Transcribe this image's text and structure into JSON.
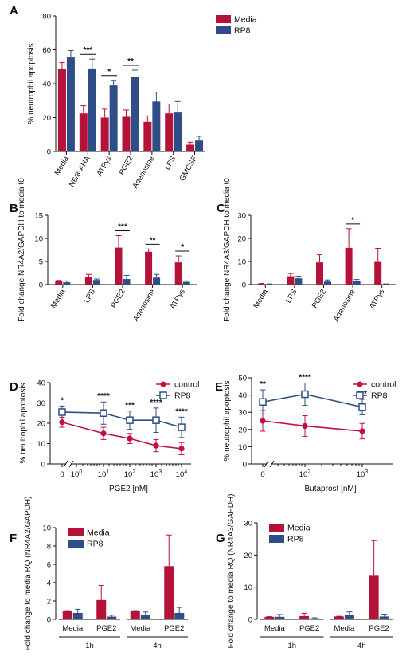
{
  "colors": {
    "media": "#b5123a",
    "rp8": "#2f4d86",
    "control": "#c40f3d"
  },
  "chart_data": [
    {
      "id": "A",
      "label": "A",
      "type": "bar",
      "ylabel": "% neutrophil apoptosis",
      "ylim": [
        0,
        80
      ],
      "yticks": [
        "0",
        "20",
        "40",
        "60",
        "80"
      ],
      "categories": [
        "Media",
        "N6/8-AHA",
        "ATPγs",
        "PGE2",
        "Adenosine",
        "LPS",
        "GMCSF"
      ],
      "series": [
        {
          "name": "Media",
          "values": [
            48.5,
            22.5,
            20,
            20.5,
            17.5,
            22.5,
            4
          ],
          "errors": [
            4,
            4.5,
            5,
            4,
            3.5,
            5.5,
            1.5
          ]
        },
        {
          "name": "RP8",
          "values": [
            55.5,
            49,
            39,
            44,
            29.5,
            23,
            6.5
          ],
          "errors": [
            4,
            5.5,
            3,
            4,
            5.5,
            6.5,
            2.5
          ]
        }
      ],
      "legend": "top-right",
      "sig": [
        {
          "cat": 1,
          "text": "***"
        },
        {
          "cat": 2,
          "text": "*"
        },
        {
          "cat": 3,
          "text": "**"
        }
      ]
    },
    {
      "id": "B",
      "label": "B",
      "type": "bar",
      "ylabel": "Fold change NR4A2/GAPDH to media t0",
      "ylim": [
        0,
        15
      ],
      "yticks": [
        "0",
        "5",
        "10",
        "15"
      ],
      "categories": [
        "Media",
        "LPS",
        "PGE2",
        "Adenosine",
        "ATPγs"
      ],
      "series": [
        {
          "name": "Media",
          "values": [
            0.8,
            1.6,
            8,
            7.1,
            4.8
          ],
          "errors": [
            0.1,
            0.6,
            2.6,
            0.6,
            1.4
          ]
        },
        {
          "name": "RP8",
          "values": [
            0.5,
            1,
            1.2,
            1.5,
            0.6
          ],
          "errors": [
            0.3,
            0.2,
            0.8,
            0.7,
            0.2
          ]
        }
      ],
      "sig": [
        {
          "cat": 2,
          "text": "***"
        },
        {
          "cat": 3,
          "text": "**"
        },
        {
          "cat": 4,
          "text": "*"
        }
      ]
    },
    {
      "id": "C",
      "label": "C",
      "type": "bar",
      "ylabel": "Fold change NR4A3/GAPDH to media t0",
      "ylim": [
        0,
        30
      ],
      "yticks": [
        "0",
        "10",
        "20",
        "30"
      ],
      "categories": [
        "Media",
        "LPS",
        "PGE2",
        "Adenosine",
        "ATPγs"
      ],
      "series": [
        {
          "name": "Media",
          "values": [
            0.4,
            3.6,
            9.6,
            15.9,
            9.8
          ],
          "errors": [
            0.1,
            1.2,
            3.3,
            8.3,
            5.9
          ]
        },
        {
          "name": "RP8",
          "values": [
            0.2,
            2.7,
            1.3,
            1.4,
            0.2
          ],
          "errors": [
            0.1,
            0.9,
            0.7,
            0.8,
            0.1
          ]
        }
      ],
      "sig": [
        {
          "cat": 3,
          "text": "*"
        }
      ]
    },
    {
      "id": "D",
      "label": "D",
      "type": "line",
      "ylabel": "% neutrophil apoptosis",
      "xlabel": "PGE2 [nM]",
      "ylim": [
        0,
        40
      ],
      "yticks": [
        "0",
        "10",
        "20",
        "30",
        "40"
      ],
      "xticks": [
        {
          "t": "0",
          "p": 0
        },
        {
          "t": "10",
          "sup": "0",
          "p": 1
        },
        {
          "t": "10",
          "sup": "1",
          "p": 2
        },
        {
          "t": "10",
          "sup": "2",
          "p": 3
        },
        {
          "t": "10",
          "sup": "3",
          "p": 4
        },
        {
          "t": "10",
          "sup": "4",
          "p": 5
        }
      ],
      "x": [
        0,
        1,
        2,
        3,
        4
      ],
      "points_at": [
        0,
        2,
        3,
        4,
        5
      ],
      "series": [
        {
          "name": "control",
          "values": [
            20.5,
            15,
            12.5,
            9,
            7.5
          ],
          "errors": [
            2.5,
            3,
            2.5,
            3,
            3
          ]
        },
        {
          "name": "RP8",
          "values": [
            25.5,
            25,
            21.5,
            21.5,
            18
          ],
          "errors": [
            3,
            5.5,
            4.5,
            6,
            5
          ]
        }
      ],
      "legend": "top-right",
      "sig": [
        "*",
        "****",
        "***",
        "****",
        "****"
      ]
    },
    {
      "id": "E",
      "label": "E",
      "type": "line",
      "ylabel": "% neutrophil apoptosis",
      "xlabel": "Butaprost [nM]",
      "ylim": [
        0,
        50
      ],
      "yticks": [
        "0",
        "10",
        "20",
        "30",
        "40",
        "50"
      ],
      "xticks": [
        {
          "t": "0",
          "p": 0
        },
        {
          "t": "10",
          "sup": "2",
          "p": 1
        },
        {
          "t": "10",
          "sup": "3",
          "p": 2
        }
      ],
      "points_at": [
        0,
        1,
        2
      ],
      "series": [
        {
          "name": "control",
          "values": [
            25,
            22,
            19
          ],
          "errors": [
            6,
            6,
            4.5
          ]
        },
        {
          "name": "RP8",
          "values": [
            36,
            40.5,
            33
          ],
          "errors": [
            7,
            6.5,
            4.5
          ]
        }
      ],
      "legend": "top-right",
      "sig": [
        "**",
        "****",
        "***"
      ]
    },
    {
      "id": "F",
      "label": "F",
      "type": "bar",
      "ylabel": "Fold change to media RQ (NR4A2/GAPDH)",
      "ylim": [
        0,
        10
      ],
      "yticks": [
        "0",
        "2",
        "4",
        "6",
        "8",
        "10"
      ],
      "categories": [
        "Media",
        "PGE2",
        "Media",
        "PGE2"
      ],
      "groups": [
        {
          "label": "1h",
          "cats": [
            0,
            1
          ]
        },
        {
          "label": "4h",
          "cats": [
            2,
            3
          ]
        }
      ],
      "series": [
        {
          "name": "Media",
          "values": [
            0.9,
            2.1,
            0.9,
            5.8
          ],
          "errors": [
            0.05,
            1.6,
            0.05,
            3.4
          ]
        },
        {
          "name": "RP8",
          "values": [
            0.7,
            0.3,
            0.5,
            0.7
          ],
          "errors": [
            0.4,
            0.15,
            0.3,
            0.6
          ]
        }
      ],
      "legend": "top-left"
    },
    {
      "id": "G",
      "label": "G",
      "type": "bar",
      "ylabel": "Fold change to media RQ (NR4A3/GAPDH)",
      "ylim": [
        0,
        30
      ],
      "yticks": [
        "0",
        "10",
        "20",
        "30"
      ],
      "categories": [
        "Media",
        "PGE2",
        "Media",
        "PGE2"
      ],
      "groups": [
        {
          "label": "1h",
          "cats": [
            0,
            1
          ]
        },
        {
          "label": "4h",
          "cats": [
            2,
            3
          ]
        }
      ],
      "series": [
        {
          "name": "Media",
          "values": [
            0.8,
            1,
            0.9,
            13.8
          ],
          "errors": [
            0.05,
            0.9,
            0.05,
            10.7
          ]
        },
        {
          "name": "RP8",
          "values": [
            0.8,
            0.3,
            1.4,
            0.9
          ],
          "errors": [
            0.7,
            0.2,
            0.9,
            0.7
          ]
        }
      ],
      "legend": "top-left"
    }
  ]
}
